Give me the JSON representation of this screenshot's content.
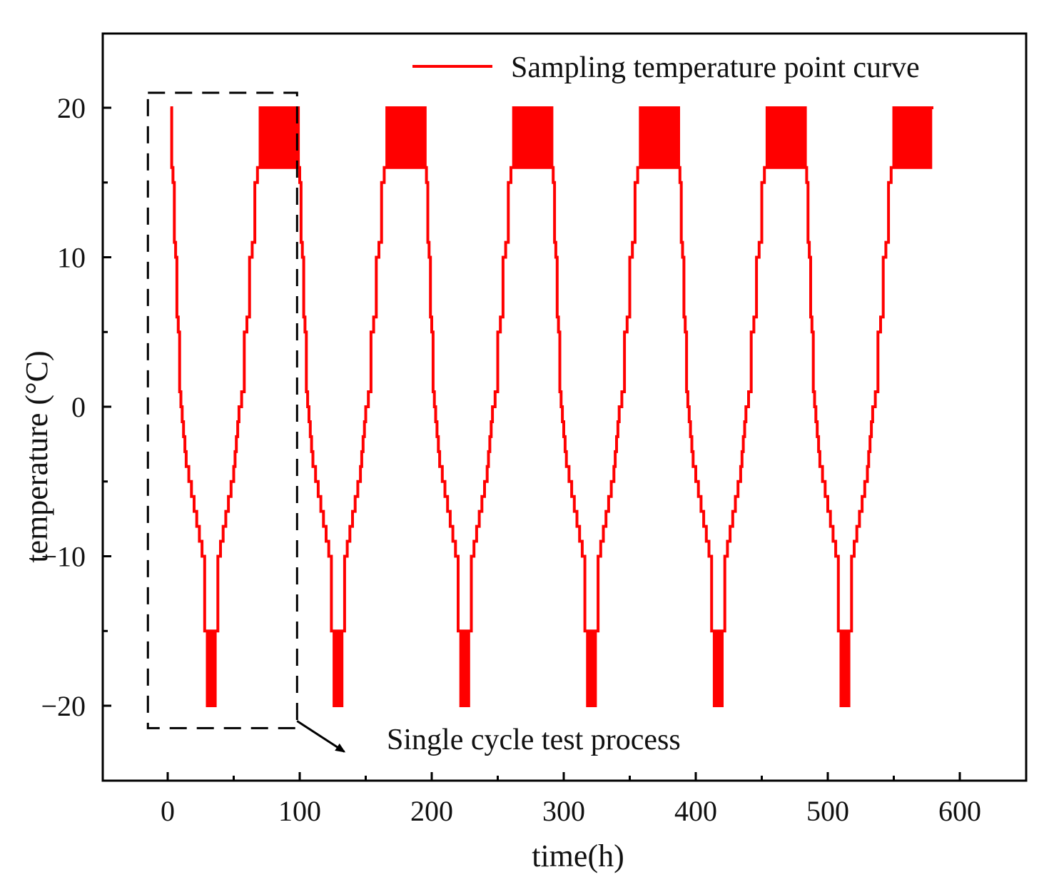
{
  "chart_data": {
    "type": "line",
    "title": "",
    "xlabel": "time(h)",
    "ylabel": "temperature (°C)",
    "xlim": [
      -50,
      650
    ],
    "ylim": [
      -25,
      25
    ],
    "x_ticks": [
      0,
      100,
      200,
      300,
      400,
      500,
      600
    ],
    "x_tick_labels": [
      "0",
      "100",
      "200",
      "300",
      "400",
      "500",
      "600"
    ],
    "y_ticks": [
      -20,
      -10,
      0,
      10,
      20
    ],
    "y_tick_labels": [
      "−20",
      "−10",
      "0",
      "10",
      "20"
    ],
    "grid": false,
    "legend": {
      "position": "top-right",
      "entries": [
        "Sampling temperature point curve"
      ]
    },
    "series": [
      {
        "name": "Sampling temperature point curve",
        "color": "#ff0000",
        "cycle_period_h": 96,
        "cycle_start_h": 2,
        "n_cycles": 6,
        "x": [
          2,
          3,
          4,
          5,
          6,
          7,
          8,
          9,
          10,
          11,
          12,
          13,
          14,
          16,
          18,
          20,
          22,
          24,
          26,
          28,
          30,
          32,
          34,
          36,
          38,
          40,
          42,
          44,
          46,
          48,
          50,
          51,
          52,
          53,
          54,
          56,
          58,
          60,
          62,
          64,
          66,
          68,
          70,
          72,
          74,
          76,
          78,
          80,
          82,
          84,
          86,
          88,
          90,
          91,
          92,
          93,
          94,
          95,
          96,
          97,
          98
        ],
        "y": [
          20,
          16,
          15,
          11,
          10,
          6,
          5,
          1,
          0,
          -1,
          -2,
          -3,
          -4,
          -5,
          -6,
          -7,
          -8,
          -9,
          -10,
          -15,
          -20,
          -15,
          -20,
          -15,
          -10,
          -9,
          -8,
          -7,
          -6,
          -5,
          -4,
          -3,
          -2,
          -1,
          0,
          1,
          5,
          6,
          10,
          11,
          15,
          16,
          20,
          16,
          20,
          16,
          20,
          16,
          20,
          16,
          20,
          16,
          20,
          16,
          20,
          16,
          20,
          16,
          20,
          16,
          20
        ]
      }
    ],
    "annotation": {
      "text": "Single cycle test process",
      "box_x_range": [
        -15,
        98
      ],
      "box_y_range": [
        -21.5,
        21
      ],
      "arrow_from": [
        98,
        -21.5
      ],
      "arrow_to": [
        150,
        -22.5
      ]
    }
  }
}
